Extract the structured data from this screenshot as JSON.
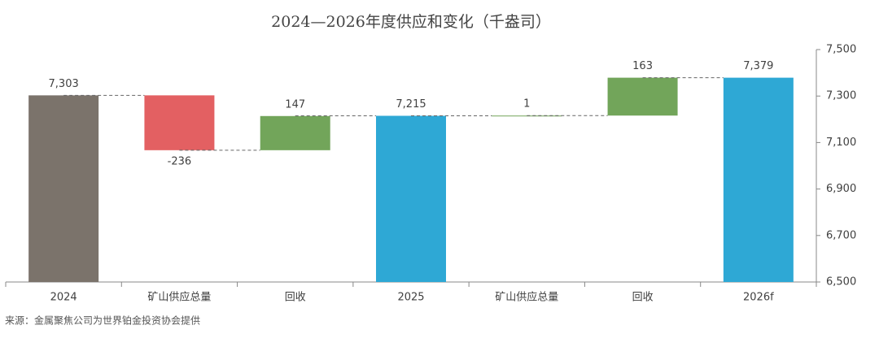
{
  "chart_data": {
    "type": "waterfall",
    "title": "2024—2026年度供应和变化（千盎司）",
    "categories": [
      "2024",
      "矿山供应总量",
      "回收",
      "2025",
      "矿山供应总量",
      "回收",
      "2026f"
    ],
    "values": [
      7303,
      -236,
      147,
      7215,
      1,
      163,
      7379
    ],
    "value_labels": [
      "7,303",
      "-236",
      "147",
      "7,215",
      "1",
      "163",
      "7,379"
    ],
    "measure": [
      "total",
      "relative",
      "relative",
      "total",
      "relative",
      "relative",
      "total"
    ],
    "colors": [
      "#7b736b",
      "#e36062",
      "#72a55a",
      "#2ea8d5",
      "#72a55a",
      "#72a55a",
      "#2ea8d5"
    ],
    "ylim": [
      6500,
      7500
    ],
    "yticks": [
      {
        "value": 6500,
        "label": "6,500"
      },
      {
        "value": 6700,
        "label": "6,700"
      },
      {
        "value": 6900,
        "label": "6,900"
      },
      {
        "value": 7100,
        "label": "7,100"
      },
      {
        "value": 7300,
        "label": "7,300"
      },
      {
        "value": 7500,
        "label": "7,500"
      }
    ],
    "y_axis_side": "right",
    "source": "来源：金属聚焦公司为世界铂金投资协会提供"
  }
}
